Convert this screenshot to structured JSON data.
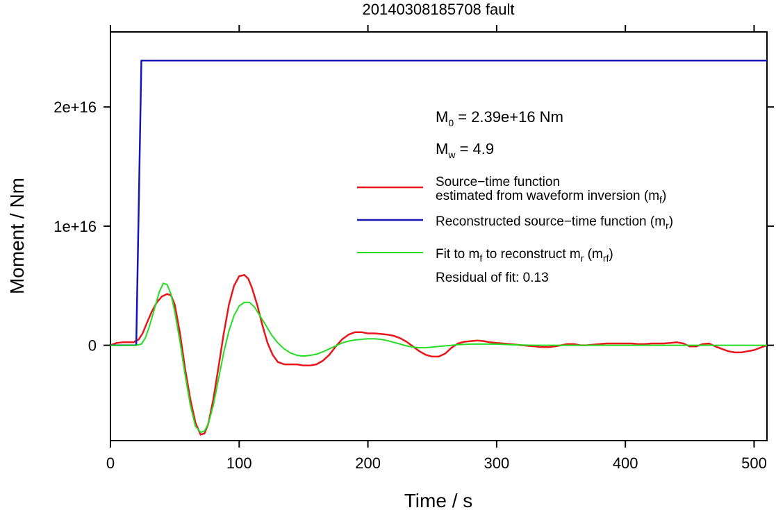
{
  "chart_data": {
    "type": "line",
    "title": "20140308185708 fault",
    "xlabel": "Time / s",
    "ylabel": "Moment / Nm",
    "xlim": [
      0,
      510
    ],
    "ylim": [
      -8000000000000000.0,
      2.63e+16
    ],
    "x_ticks": [
      0,
      100,
      200,
      300,
      400,
      500
    ],
    "x_tick_labels": [
      "0",
      "100",
      "200",
      "300",
      "400",
      "500"
    ],
    "y_ticks": [
      0,
      1e+16,
      2e+16
    ],
    "y_tick_labels": [
      "0",
      "1e+16",
      "2e+16"
    ],
    "grid": false,
    "annotations": {
      "m0": {
        "base": "M",
        "sub": "0",
        "text": " = 2.39e+16 Nm"
      },
      "mw": {
        "base": "M",
        "sub": "w",
        "text": " = 4.9"
      },
      "residual": "Residual of fit: 0.13"
    },
    "legend": {
      "placement": "right",
      "entries": [
        {
          "key": "red",
          "color": "#e8161b",
          "line1": "Source−time function",
          "line2_pre": "estimated from waveform inversion (m",
          "line2_sub": "f",
          "line2_post": ")"
        },
        {
          "key": "blue",
          "color": "#1515b8",
          "line1_pre": "Reconstructed source−time function (m",
          "line1_sub": "r",
          "line1_post": ")"
        },
        {
          "key": "green",
          "color": "#22dd22",
          "p1": "Fit to m",
          "s1": "f",
          "p2": " to reconstruct m",
          "s2": "r",
          "p3": " (m",
          "s3": "rf",
          "p4": ")"
        }
      ]
    },
    "series": [
      {
        "key": "red",
        "color": "#e8161b",
        "x": [
          0,
          5,
          10,
          18,
          22,
          25,
          28,
          32,
          36,
          40,
          44,
          47,
          50,
          54,
          58,
          62,
          66,
          70,
          73,
          76,
          80,
          84,
          88,
          92,
          96,
          100,
          104,
          107,
          110,
          114,
          118,
          122,
          126,
          130,
          135,
          140,
          145,
          150,
          155,
          160,
          165,
          170,
          175,
          180,
          185,
          190,
          195,
          200,
          205,
          210,
          215,
          220,
          225,
          230,
          235,
          240,
          245,
          250,
          255,
          260,
          265,
          270,
          275,
          280,
          285,
          290,
          295,
          300,
          305,
          310,
          315,
          320,
          325,
          330,
          335,
          340,
          345,
          350,
          355,
          360,
          365,
          370,
          375,
          380,
          385,
          390,
          395,
          400,
          405,
          410,
          415,
          420,
          425,
          430,
          435,
          440,
          445,
          450,
          455,
          460,
          465,
          470,
          475,
          480,
          485,
          490,
          495,
          500,
          505,
          510
        ],
        "y": [
          0,
          200000000000000.0,
          250000000000000.0,
          250000000000000.0,
          500000000000000.0,
          1000000000000000.0,
          1800000000000000.0,
          2800000000000000.0,
          3600000000000000.0,
          4100000000000000.0,
          4300000000000000.0,
          4200000000000000.0,
          3400000000000000.0,
          1000000000000000.0,
          -2000000000000000.0,
          -4500000000000000.0,
          -6500000000000000.0,
          -7500000000000000.0,
          -7400000000000000.0,
          -6600000000000000.0,
          -4500000000000000.0,
          -1800000000000000.0,
          1000000000000000.0,
          3400000000000000.0,
          5000000000000000.0,
          5800000000000000.0,
          5900000000000000.0,
          5600000000000000.0,
          4800000000000000.0,
          3400000000000000.0,
          1700000000000000.0,
          200000000000000.0,
          -800000000000000.0,
          -1400000000000000.0,
          -1600000000000000.0,
          -1600000000000000.0,
          -1600000000000000.0,
          -1700000000000000.0,
          -1700000000000000.0,
          -1600000000000000.0,
          -1300000000000000.0,
          -800000000000000.0,
          -100000000000000.0,
          500000000000000.0,
          900000000000000.0,
          1100000000000000.0,
          1100000000000000.0,
          1000000000000000.0,
          1000000000000000.0,
          950000000000000.0,
          900000000000000.0,
          800000000000000.0,
          600000000000000.0,
          300000000000000.0,
          -100000000000000.0,
          -500000000000000.0,
          -800000000000000.0,
          -950000000000000.0,
          -950000000000000.0,
          -700000000000000.0,
          -200000000000000.0,
          150000000000000.0,
          300000000000000.0,
          350000000000000.0,
          400000000000000.0,
          350000000000000.0,
          250000000000000.0,
          200000000000000.0,
          150000000000000.0,
          100000000000000.0,
          50000000000000.0,
          0,
          -50000000000000.0,
          -100000000000000.0,
          -150000000000000.0,
          -150000000000000.0,
          -100000000000000.0,
          0,
          100000000000000.0,
          100000000000000.0,
          0,
          0,
          50000000000000.0,
          100000000000000.0,
          150000000000000.0,
          150000000000000.0,
          150000000000000.0,
          150000000000000.0,
          150000000000000.0,
          100000000000000.0,
          100000000000000.0,
          150000000000000.0,
          150000000000000.0,
          150000000000000.0,
          200000000000000.0,
          250000000000000.0,
          150000000000000.0,
          -100000000000000.0,
          -100000000000000.0,
          100000000000000.0,
          150000000000000.0,
          -100000000000000.0,
          -300000000000000.0,
          -500000000000000.0,
          -600000000000000.0,
          -600000000000000.0,
          -500000000000000.0,
          -400000000000000.0,
          -200000000000000.0,
          0
        ]
      },
      {
        "key": "blue",
        "color": "#1515b8",
        "x": [
          0,
          20,
          24,
          510
        ],
        "y": [
          0,
          0,
          2.39e+16,
          2.39e+16
        ]
      },
      {
        "key": "green",
        "color": "#22dd22",
        "x": [
          0,
          20,
          24,
          27,
          30,
          34,
          38,
          41,
          44,
          47,
          50,
          54,
          58,
          62,
          66,
          70,
          73,
          76,
          80,
          84,
          88,
          92,
          96,
          100,
          104,
          108,
          112,
          116,
          120,
          125,
          130,
          135,
          140,
          145,
          150,
          155,
          160,
          165,
          170,
          175,
          180,
          185,
          190,
          195,
          200,
          205,
          210,
          215,
          220,
          225,
          230,
          235,
          240,
          245,
          250,
          255,
          260,
          265,
          270,
          280,
          290,
          300,
          310,
          320,
          330,
          340,
          350,
          360,
          380,
          400,
          420,
          440,
          460,
          480,
          510
        ],
        "y": [
          0,
          0,
          100000000000000.0,
          600000000000000.0,
          1500000000000000.0,
          3000000000000000.0,
          4500000000000000.0,
          5200000000000000.0,
          5100000000000000.0,
          4300000000000000.0,
          2800000000000000.0,
          300000000000000.0,
          -2500000000000000.0,
          -5000000000000000.0,
          -6800000000000000.0,
          -7300000000000000.0,
          -7200000000000000.0,
          -6600000000000000.0,
          -5000000000000000.0,
          -2800000000000000.0,
          -600000000000000.0,
          1200000000000000.0,
          2500000000000000.0,
          3300000000000000.0,
          3600000000000000.0,
          3600000000000000.0,
          3200000000000000.0,
          2500000000000000.0,
          1800000000000000.0,
          900000000000000.0,
          200000000000000.0,
          -300000000000000.0,
          -650000000000000.0,
          -850000000000000.0,
          -900000000000000.0,
          -850000000000000.0,
          -750000000000000.0,
          -550000000000000.0,
          -300000000000000.0,
          -50000000000000.0,
          200000000000000.0,
          350000000000000.0,
          450000000000000.0,
          500000000000000.0,
          550000000000000.0,
          550000000000000.0,
          500000000000000.0,
          400000000000000.0,
          250000000000000.0,
          100000000000000.0,
          -50000000000000.0,
          -150000000000000.0,
          -200000000000000.0,
          -200000000000000.0,
          -150000000000000.0,
          -100000000000000.0,
          -50000000000000.0,
          0,
          50000000000000.0,
          100000000000000.0,
          100000000000000.0,
          100000000000000.0,
          50000000000000.0,
          20000000000000.0,
          0,
          0,
          0,
          0,
          0,
          0,
          0,
          0,
          0,
          0,
          0
        ]
      }
    ]
  }
}
